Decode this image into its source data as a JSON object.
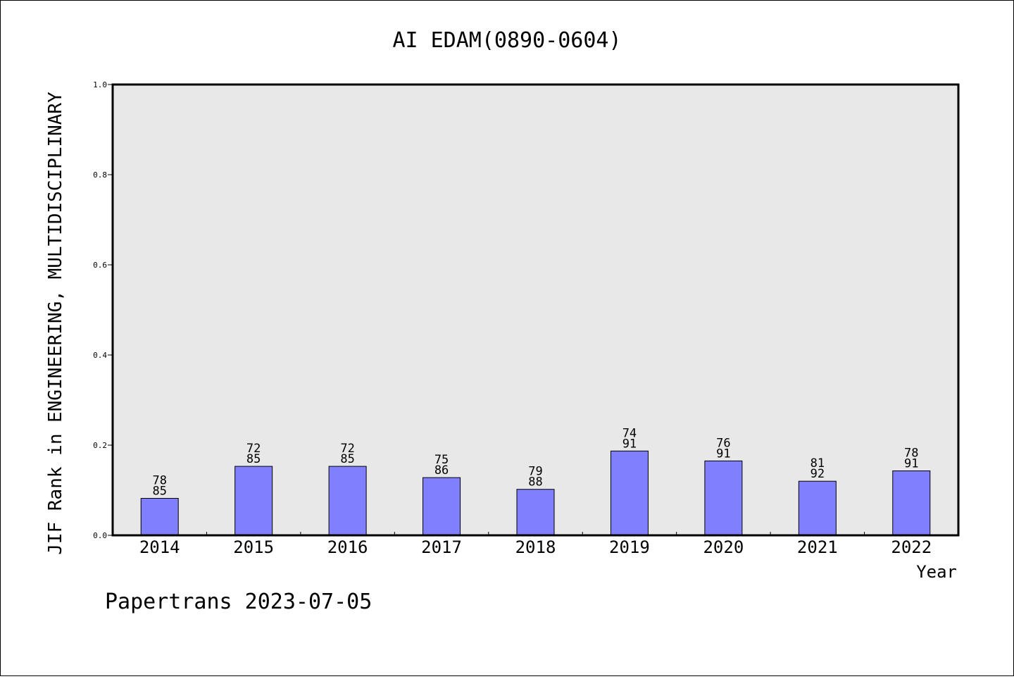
{
  "chart_data": {
    "type": "bar",
    "title": "AI EDAM(0890-0604)",
    "xlabel": "Year",
    "ylabel": "JIF Rank in ENGINEERING, MULTIDISCIPLINARY",
    "ylim": [
      0,
      1.0
    ],
    "yticks": [
      "0.0",
      "0.2",
      "0.4",
      "0.6",
      "0.8",
      "1.0"
    ],
    "categories": [
      "2014",
      "2015",
      "2016",
      "2017",
      "2018",
      "2019",
      "2020",
      "2021",
      "2022"
    ],
    "values": [
      0.082,
      0.153,
      0.153,
      0.128,
      0.102,
      0.187,
      0.165,
      0.12,
      0.143
    ],
    "rank": [
      "78",
      "72",
      "72",
      "75",
      "79",
      "74",
      "76",
      "81",
      "78"
    ],
    "total": [
      "85",
      "85",
      "85",
      "86",
      "88",
      "91",
      "91",
      "92",
      "91"
    ],
    "bar_color": "#8080ff",
    "plot_background": "#e8e8e8",
    "grid": false,
    "legend": "none"
  },
  "footer": {
    "text": "Papertrans 2023-07-05"
  }
}
